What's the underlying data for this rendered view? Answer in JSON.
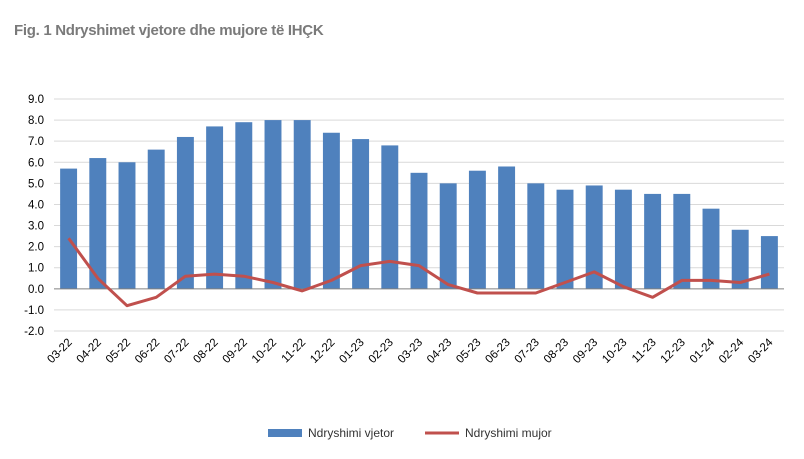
{
  "chart_data": {
    "type": "bar",
    "title": "Fig. 1 Ndryshimet vjetore dhe mujore të IHÇK",
    "categories": [
      "03-22",
      "04-22",
      "05-22",
      "06-22",
      "07-22",
      "08-22",
      "09-22",
      "10-22",
      "11-22",
      "12-22",
      "01-23",
      "02-23",
      "03-23",
      "04-23",
      "05-23",
      "06-23",
      "07-23",
      "08-23",
      "09-23",
      "10-23",
      "11-23",
      "12-23",
      "01-24",
      "02-24",
      "03-24"
    ],
    "series": [
      {
        "name": "Ndryshimi vjetor",
        "kind": "bar",
        "color": "#4f81bd",
        "values": [
          5.7,
          6.2,
          6.0,
          6.6,
          7.2,
          7.7,
          7.9,
          8.0,
          8.0,
          7.4,
          7.1,
          6.8,
          5.5,
          5.0,
          5.6,
          5.8,
          5.0,
          4.7,
          4.9,
          4.7,
          4.5,
          4.5,
          3.8,
          2.8,
          2.5
        ]
      },
      {
        "name": "Ndryshimi mujor",
        "kind": "line",
        "color": "#c0504d",
        "values": [
          2.4,
          0.5,
          -0.8,
          -0.4,
          0.6,
          0.7,
          0.6,
          0.3,
          -0.1,
          0.4,
          1.1,
          1.3,
          1.1,
          0.2,
          -0.2,
          -0.2,
          -0.2,
          0.3,
          0.8,
          0.1,
          -0.4,
          0.4,
          0.4,
          0.3,
          0.7
        ]
      }
    ],
    "yticks": [
      "9.0",
      "8.0",
      "7.0",
      "6.0",
      "5.0",
      "4.0",
      "3.0",
      "2.0",
      "1.0",
      "0.0",
      "-1.0",
      "-2.0"
    ],
    "ylim": [
      -2,
      9
    ],
    "xlabel": "",
    "ylabel": "",
    "grid": true,
    "legend": "bottom"
  }
}
